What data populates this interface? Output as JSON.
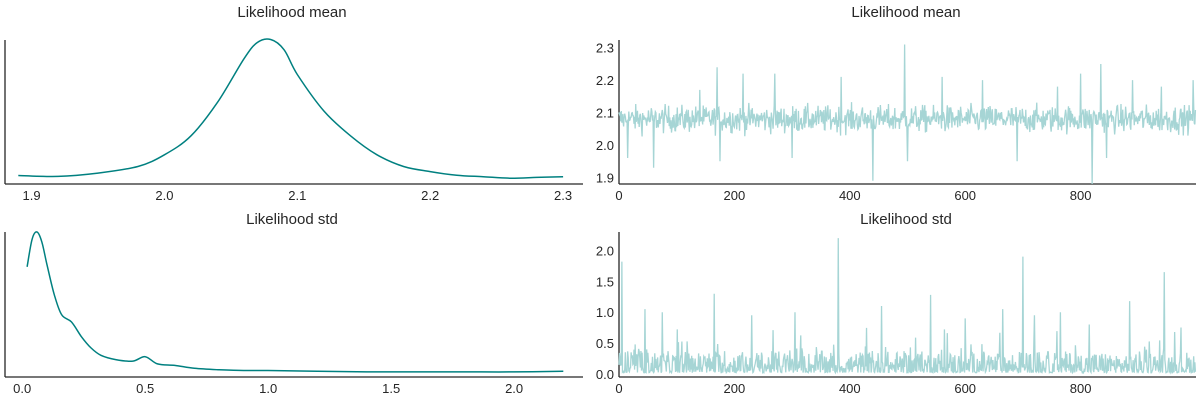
{
  "chart_data": [
    {
      "type": "line",
      "subtype": "density",
      "title": "Likelihood mean",
      "xlabel": "",
      "ylabel": "",
      "xlim": [
        1.88,
        2.315
      ],
      "ylim": [
        0,
        1
      ],
      "xticks": [
        "1.9",
        "2.0",
        "2.1",
        "2.2",
        "2.3"
      ],
      "yticks": [],
      "color": "#008080",
      "grid": false,
      "x": [
        1.89,
        1.92,
        1.95,
        1.98,
        2.0,
        2.02,
        2.04,
        2.06,
        2.07,
        2.08,
        2.09,
        2.1,
        2.12,
        2.14,
        2.16,
        2.18,
        2.2,
        2.22,
        2.24,
        2.26,
        2.28,
        2.3
      ],
      "y": [
        0.058,
        0.052,
        0.075,
        0.12,
        0.2,
        0.33,
        0.56,
        0.86,
        0.97,
        0.99,
        0.92,
        0.75,
        0.5,
        0.33,
        0.2,
        0.12,
        0.085,
        0.06,
        0.05,
        0.04,
        0.045,
        0.05
      ]
    },
    {
      "type": "line",
      "subtype": "trace",
      "title": "Likelihood mean",
      "xlabel": "",
      "ylabel": "",
      "xlim": [
        0,
        1000
      ],
      "ylim": [
        1.88,
        2.33
      ],
      "xticks": [
        "0",
        "200",
        "400",
        "600",
        "800"
      ],
      "yticks": [
        "1.9",
        "2.0",
        "2.1",
        "2.2",
        "2.3"
      ],
      "color": "#a6d5d5",
      "grid": false,
      "n_samples": 1000,
      "center": 2.08,
      "spikes": [
        [
          15,
          1.96
        ],
        [
          60,
          1.93
        ],
        [
          140,
          2.17
        ],
        [
          170,
          2.24
        ],
        [
          175,
          1.95
        ],
        [
          215,
          2.22
        ],
        [
          270,
          2.22
        ],
        [
          300,
          1.96
        ],
        [
          385,
          2.21
        ],
        [
          440,
          1.89
        ],
        [
          495,
          2.31
        ],
        [
          500,
          1.95
        ],
        [
          560,
          2.21
        ],
        [
          630,
          2.2
        ],
        [
          690,
          1.95
        ],
        [
          760,
          2.18
        ],
        [
          800,
          2.22
        ],
        [
          820,
          1.88
        ],
        [
          835,
          2.25
        ],
        [
          845,
          1.96
        ],
        [
          890,
          2.2
        ],
        [
          940,
          2.18
        ],
        [
          995,
          2.2
        ]
      ]
    },
    {
      "type": "line",
      "subtype": "density",
      "title": "Likelihood std",
      "xlabel": "",
      "ylabel": "",
      "xlim": [
        -0.07,
        2.28
      ],
      "ylim": [
        0,
        1
      ],
      "xticks": [
        "0.0",
        "0.5",
        "1.0",
        "1.5",
        "2.0"
      ],
      "yticks": [],
      "color": "#008080",
      "grid": false,
      "x": [
        0.02,
        0.04,
        0.06,
        0.08,
        0.1,
        0.13,
        0.16,
        0.2,
        0.24,
        0.28,
        0.32,
        0.38,
        0.45,
        0.5,
        0.55,
        0.62,
        0.7,
        0.8,
        0.9,
        1.0,
        1.2,
        1.4,
        1.6,
        1.8,
        2.0,
        2.2
      ],
      "y": [
        0.76,
        0.95,
        1.0,
        0.93,
        0.78,
        0.57,
        0.43,
        0.38,
        0.28,
        0.2,
        0.15,
        0.12,
        0.11,
        0.14,
        0.09,
        0.08,
        0.06,
        0.05,
        0.045,
        0.045,
        0.04,
        0.035,
        0.035,
        0.035,
        0.035,
        0.04
      ]
    },
    {
      "type": "line",
      "subtype": "trace",
      "title": "Likelihood std",
      "xlabel": "",
      "ylabel": "",
      "xlim": [
        0,
        1000
      ],
      "ylim": [
        -0.05,
        2.3
      ],
      "xticks": [
        "0",
        "200",
        "400",
        "600",
        "800"
      ],
      "yticks": [
        "0.0",
        "0.5",
        "1.0",
        "1.5",
        "2.0"
      ],
      "color": "#a6d5d5",
      "grid": false,
      "n_samples": 1000,
      "center": 0.1,
      "spikes": [
        [
          5,
          1.82
        ],
        [
          45,
          1.05
        ],
        [
          75,
          1.0
        ],
        [
          165,
          1.3
        ],
        [
          230,
          0.95
        ],
        [
          305,
          1.0
        ],
        [
          380,
          2.2
        ],
        [
          455,
          1.1
        ],
        [
          540,
          1.28
        ],
        [
          600,
          0.9
        ],
        [
          665,
          1.05
        ],
        [
          700,
          1.9
        ],
        [
          720,
          0.95
        ],
        [
          765,
          1.0
        ],
        [
          815,
          0.8
        ],
        [
          885,
          1.18
        ],
        [
          945,
          1.65
        ]
      ]
    }
  ]
}
